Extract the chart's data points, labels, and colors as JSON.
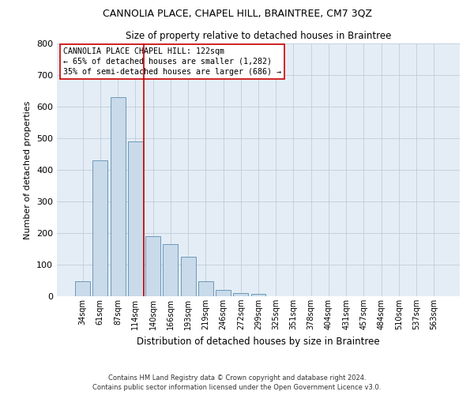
{
  "title": "CANNOLIA PLACE, CHAPEL HILL, BRAINTREE, CM7 3QZ",
  "subtitle": "Size of property relative to detached houses in Braintree",
  "xlabel": "Distribution of detached houses by size in Braintree",
  "ylabel": "Number of detached properties",
  "footer_line1": "Contains HM Land Registry data © Crown copyright and database right 2024.",
  "footer_line2": "Contains public sector information licensed under the Open Government Licence v3.0.",
  "bar_labels": [
    "34sqm",
    "61sqm",
    "87sqm",
    "114sqm",
    "140sqm",
    "166sqm",
    "193sqm",
    "219sqm",
    "246sqm",
    "272sqm",
    "299sqm",
    "325sqm",
    "351sqm",
    "378sqm",
    "404sqm",
    "431sqm",
    "457sqm",
    "484sqm",
    "510sqm",
    "537sqm",
    "563sqm"
  ],
  "bar_values": [
    47,
    430,
    630,
    490,
    190,
    165,
    125,
    47,
    20,
    10,
    8,
    0,
    0,
    0,
    0,
    0,
    0,
    0,
    0,
    0,
    0
  ],
  "bar_color": "#c9daea",
  "bar_edgecolor": "#5b8db0",
  "grid_color": "#c0ccd8",
  "background_color": "#e4edf5",
  "annotation_text": "CANNOLIA PLACE CHAPEL HILL: 122sqm\n← 65% of detached houses are smaller (1,282)\n35% of semi-detached houses are larger (686) →",
  "vline_x_index": 3,
  "vline_color": "#cc0000",
  "box_facecolor": "#ffffff",
  "box_edgecolor": "#cc0000",
  "ylim": [
    0,
    800
  ],
  "yticks": [
    0,
    100,
    200,
    300,
    400,
    500,
    600,
    700,
    800
  ]
}
